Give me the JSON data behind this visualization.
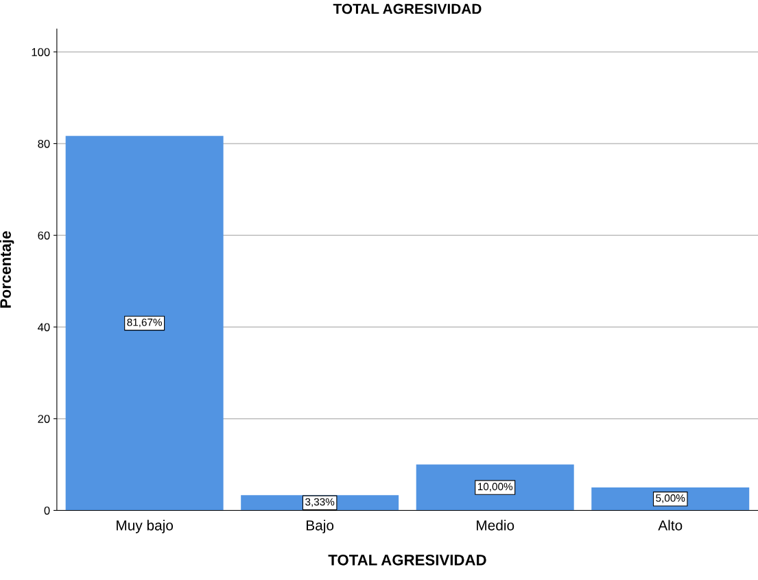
{
  "chart_data": {
    "type": "bar",
    "title": "TOTAL AGRESIVIDAD",
    "xlabel": "TOTAL AGRESIVIDAD",
    "ylabel": "Porcentaje",
    "categories": [
      "Muy bajo",
      "Bajo",
      "Medio",
      "Alto"
    ],
    "values": [
      81.67,
      3.33,
      10.0,
      5.0
    ],
    "value_labels": [
      "81,67%",
      "3,33%",
      "10,00%",
      "5,00%"
    ],
    "color": "#5294e2",
    "ylim": [
      0,
      105
    ],
    "yticks": [
      0,
      20,
      40,
      60,
      80,
      100
    ],
    "grid": "y"
  }
}
